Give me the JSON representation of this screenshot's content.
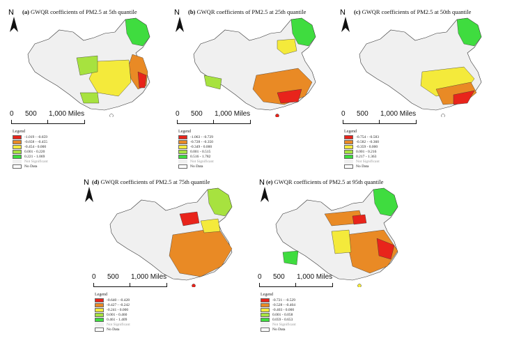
{
  "panels": [
    {
      "label": "(a)",
      "title": "GWQR coefficients of PM2.5 at 5th quantile",
      "scale": [
        "0",
        "500",
        "1,000 Miles"
      ],
      "legend": {
        "title": "Legend",
        "items": [
          {
            "range": "-1.019 - -0.659",
            "color": "#e8241b"
          },
          {
            "range": "-0.658 - -0.455",
            "color": "#e98a25"
          },
          {
            "range": "-0.454 - 0.000",
            "color": "#f4ea3b"
          },
          {
            "range": "0.001 - 0.220",
            "color": "#a7e23f"
          },
          {
            "range": "0.221 - 1.069",
            "color": "#3fdc3f"
          }
        ],
        "not_significant": "Not Significant",
        "no_data": "No Data"
      }
    },
    {
      "label": "(b)",
      "title": "GWQR coefficients of PM2.5 at 25th quantile",
      "scale": [
        "0",
        "500",
        "1,000 Miles"
      ],
      "legend": {
        "title": "Legend",
        "items": [
          {
            "range": "-1.063 - -0.729",
            "color": "#e8241b"
          },
          {
            "range": "-0.728 - -0.350",
            "color": "#e98a25"
          },
          {
            "range": "-0.349 - 0.000",
            "color": "#f4ea3b"
          },
          {
            "range": "0.001 - 0.515",
            "color": "#a7e23f"
          },
          {
            "range": "0.516 - 1.782",
            "color": "#3fdc3f"
          }
        ],
        "not_significant": "Not Significant",
        "no_data": "No Data"
      }
    },
    {
      "label": "(c)",
      "title": "GWQR coefficients of PM2.5 at 50th quantile",
      "scale": [
        "0",
        "500",
        "1,000 Miles"
      ],
      "legend": {
        "title": "Legend",
        "items": [
          {
            "range": "-0.754 - -0.583",
            "color": "#e8241b"
          },
          {
            "range": "-0.582 - -0.360",
            "color": "#e98a25"
          },
          {
            "range": "-0.359 - 0.000",
            "color": "#f4ea3b"
          },
          {
            "range": "0.001 - 0.216",
            "color": "#a7e23f"
          },
          {
            "range": "0.217 - 1.363",
            "color": "#3fdc3f"
          }
        ],
        "not_significant": "Not Significant",
        "no_data": "No Data"
      }
    },
    {
      "label": "(d)",
      "title": "GWQR coefficients of PM2.5 at 75th quantile",
      "scale": [
        "0",
        "500",
        "1,000 Miles"
      ],
      "legend": {
        "title": "Legend",
        "items": [
          {
            "range": "-0.640 - -0.428",
            "color": "#e8241b"
          },
          {
            "range": "-0.427 - -0.242",
            "color": "#e98a25"
          },
          {
            "range": "-0.241 - 0.000",
            "color": "#f4ea3b"
          },
          {
            "range": "0.001 - 0.460",
            "color": "#a7e23f"
          },
          {
            "range": "0.461 - 1.409",
            "color": "#3fdc3f"
          }
        ],
        "not_significant": "Not Significant",
        "no_data": "No Data"
      }
    },
    {
      "label": "(e)",
      "title": "GWQR coefficients of PM2.5 at 95th quantile",
      "scale": [
        "0",
        "500",
        "1,000 Miles"
      ],
      "legend": {
        "title": "Legend",
        "items": [
          {
            "range": "-0.721 - -0.529",
            "color": "#e8241b"
          },
          {
            "range": "-0.528 - -0.404",
            "color": "#e98a25"
          },
          {
            "range": "-0.403 - 0.000",
            "color": "#f4ea3b"
          },
          {
            "range": "0.001 - 0.058",
            "color": "#a7e23f"
          },
          {
            "range": "0.059 - 0.653",
            "color": "#3fdc3f"
          }
        ],
        "not_significant": "Not Significant",
        "no_data": "No Data"
      }
    }
  ],
  "north_label": "N",
  "colors": {
    "not_significant": "#f0f0f0",
    "no_data": "#ffffff",
    "outline": "#333333"
  }
}
